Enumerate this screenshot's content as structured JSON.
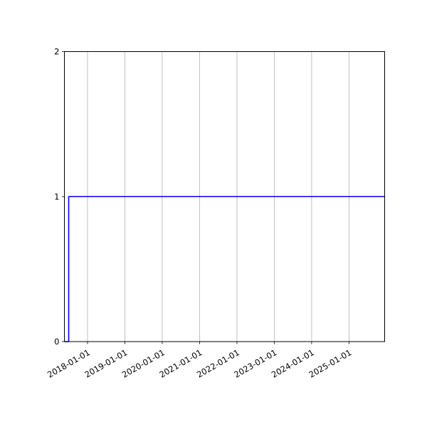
{
  "chart_data": {
    "type": "line",
    "step": true,
    "title": "",
    "xlabel": "",
    "ylabel": "",
    "x_type": "date",
    "xlim": [
      "2017-05-20",
      "2025-12-15"
    ],
    "ylim": [
      0,
      2
    ],
    "grid": {
      "x": true,
      "y": false
    },
    "x_ticks": [
      "2018-01-01",
      "2019-01-01",
      "2020-01-01",
      "2021-01-01",
      "2022-01-01",
      "2023-01-01",
      "2024-01-01",
      "2025-01-01"
    ],
    "y_ticks": [
      "0",
      "1",
      "2"
    ],
    "series": [
      {
        "color": "#0000ff",
        "points": [
          {
            "x": "2017-05-20",
            "y": 0
          },
          {
            "x": "2017-07-01",
            "y": 0
          },
          {
            "x": "2017-07-01",
            "y": 1
          },
          {
            "x": "2025-12-15",
            "y": 1
          }
        ]
      }
    ]
  }
}
